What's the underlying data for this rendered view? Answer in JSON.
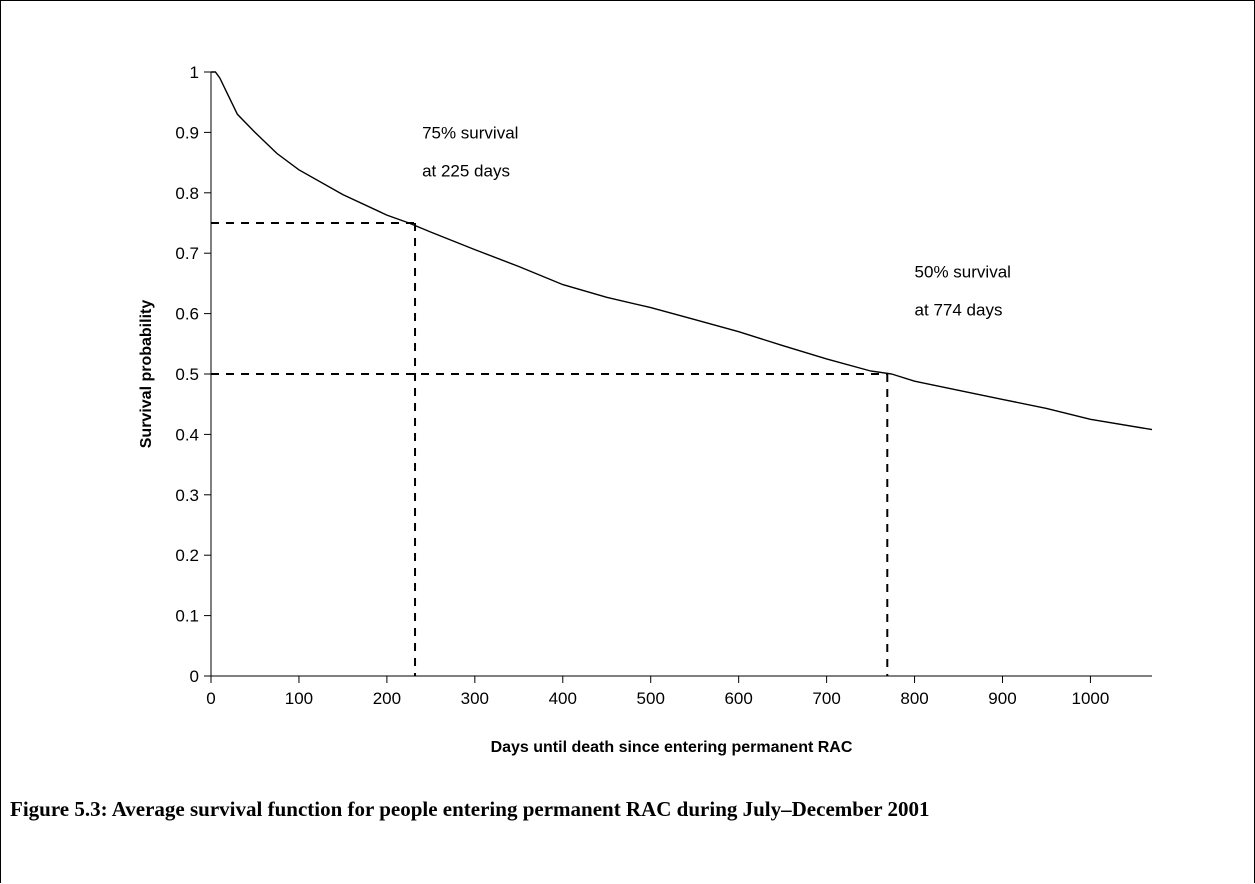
{
  "caption": "Figure 5.3:  Average survival function for people entering permanent RAC during July–December 2001",
  "chart_data": {
    "type": "line",
    "title": "",
    "xlabel": "Days until death since entering permanent RAC",
    "ylabel": "Survival probability",
    "xlim": [
      0,
      1070
    ],
    "ylim": [
      0,
      1
    ],
    "x_ticks": [
      0,
      100,
      200,
      300,
      400,
      500,
      600,
      700,
      800,
      900,
      1000
    ],
    "y_ticks": [
      "0",
      "0.1",
      "0.2",
      "0.3",
      "0.4",
      "0.5",
      "0.6",
      "0.7",
      "0.8",
      "0.9",
      "1"
    ],
    "grid": false,
    "legend": "none",
    "series": [
      {
        "color": "#000000",
        "x": [
          0,
          5,
          10,
          20,
          30,
          50,
          75,
          100,
          150,
          200,
          225,
          250,
          300,
          350,
          400,
          450,
          500,
          550,
          600,
          650,
          700,
          750,
          774,
          800,
          850,
          900,
          950,
          1000,
          1070
        ],
        "y": [
          1.0,
          1.0,
          0.99,
          0.96,
          0.93,
          0.9,
          0.865,
          0.838,
          0.797,
          0.763,
          0.75,
          0.735,
          0.706,
          0.678,
          0.648,
          0.627,
          0.61,
          0.59,
          0.57,
          0.547,
          0.525,
          0.505,
          0.5,
          0.488,
          0.473,
          0.458,
          0.443,
          0.425,
          0.408
        ]
      }
    ],
    "reference_lines": [
      {
        "x": 232,
        "y": 0.75,
        "color": "#000000"
      },
      {
        "x": 769,
        "y": 0.5,
        "color": "#000000"
      }
    ],
    "annotations": [
      {
        "lines": [
          "75% survival",
          "at 225 days"
        ],
        "x": 240,
        "y": 0.9
      },
      {
        "lines": [
          "50% survival",
          "at 774 days"
        ],
        "x": 800,
        "y": 0.67
      }
    ]
  }
}
